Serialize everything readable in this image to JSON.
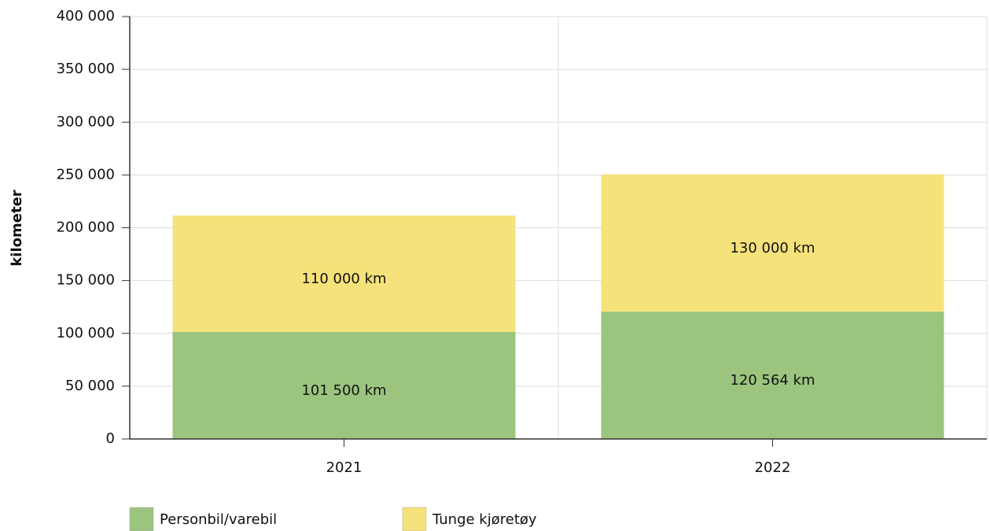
{
  "chart_data": {
    "type": "stacked_bar",
    "y_label": "kilometer",
    "categories": [
      "2021",
      "2022"
    ],
    "series": [
      {
        "name": "Personbil/varebil",
        "color": "#9bc57e",
        "values": [
          101500,
          120564
        ],
        "value_labels": [
          "101 500 km",
          "120 564 km"
        ]
      },
      {
        "name": "Tunge kjøretøy",
        "color": "#f6e27a",
        "values": [
          110000,
          130000
        ],
        "value_labels": [
          "110 000 km",
          "130 000 km"
        ]
      }
    ],
    "ylim": [
      0,
      400000
    ],
    "yticks": [
      0,
      {
        "value": 50000,
        "label": "50 000"
      },
      {
        "value": 100000,
        "label": "100 000"
      },
      {
        "value": 150000,
        "label": "150 000"
      },
      {
        "value": 200000,
        "label": "200 000"
      },
      {
        "value": 250000,
        "label": "250 000"
      },
      {
        "value": 300000,
        "label": "300 000"
      },
      {
        "value": 350000,
        "label": "350 000"
      },
      {
        "value": 400000,
        "label": "400 000"
      }
    ],
    "grid": true,
    "legend": "bottom"
  }
}
